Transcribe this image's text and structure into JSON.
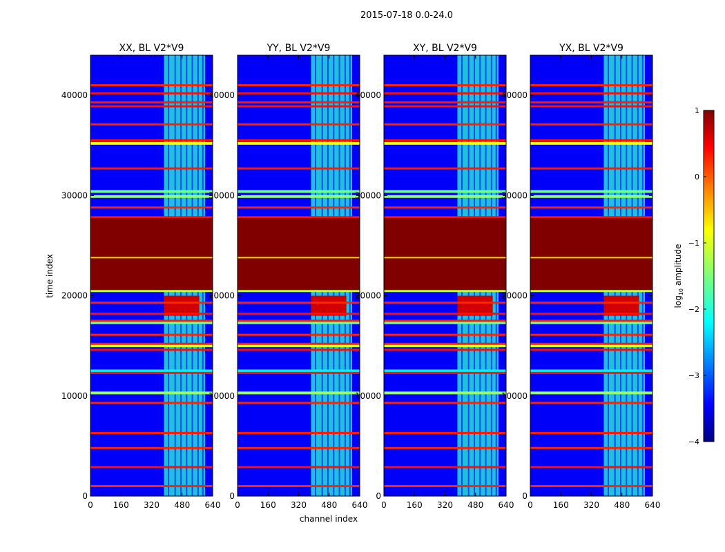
{
  "chart_data": {
    "type": "heatmap",
    "suptitle": "2015-07-18 0.0-24.0",
    "xlabel": "channel index",
    "ylabel": "time index",
    "xlim": [
      0,
      640
    ],
    "ylim": [
      0,
      44000
    ],
    "xticks": [
      0,
      160,
      320,
      480,
      640
    ],
    "yticks": [
      0,
      10000,
      20000,
      30000,
      40000
    ],
    "panels": [
      {
        "title": "XX, BL V2*V9"
      },
      {
        "title": "YY, BL V2*V9"
      },
      {
        "title": "XY, BL V2*V9"
      },
      {
        "title": "YX, BL V2*V9"
      }
    ],
    "colorbar": {
      "label_prefix": "log",
      "label_sub": "10",
      "label_suffix": " amplitude",
      "min": -4,
      "max": 1,
      "ticks": [
        1,
        0,
        -1,
        -2,
        -3,
        -4
      ],
      "tick_labels": [
        "1",
        "0",
        "−1",
        "−2",
        "−3",
        "−4"
      ],
      "colormap": "jet"
    },
    "background_level": -3.4,
    "saturated_rows": {
      "start": 20500,
      "end": 27800,
      "value": 1.0
    },
    "saturated_row_lines": [
      23800
    ],
    "flag_rows": [
      {
        "y": 1000,
        "value": 0.2
      },
      {
        "y": 2900,
        "value": 0.3
      },
      {
        "y": 4800,
        "value": 0.2
      },
      {
        "y": 6300,
        "value": 0.25
      },
      {
        "y": 9300,
        "value": 0.2
      },
      {
        "y": 12300,
        "value": 0.25
      },
      {
        "y": 14600,
        "value": 0.3
      },
      {
        "y": 15200,
        "value": 0.25
      },
      {
        "y": 16100,
        "value": 0.2
      },
      {
        "y": 17500,
        "value": 0.25
      },
      {
        "y": 18200,
        "value": 0.3
      },
      {
        "y": 19300,
        "value": 0.2
      },
      {
        "y": 28800,
        "value": 0.2
      },
      {
        "y": 32700,
        "value": 0.25
      },
      {
        "y": 35500,
        "value": 0.3
      },
      {
        "y": 37100,
        "value": 0.2
      },
      {
        "y": 38900,
        "value": 0.3
      },
      {
        "y": 39300,
        "value": 0.25
      },
      {
        "y": 40200,
        "value": 0.3
      },
      {
        "y": 41000,
        "value": 0.2
      }
    ],
    "bright_rows": [
      {
        "y": 10300,
        "value": -1.4
      },
      {
        "y": 12500,
        "value": -2.2
      },
      {
        "y": 17300,
        "value": -1.6
      },
      {
        "y": 29900,
        "value": -1.4
      },
      {
        "y": 30400,
        "value": -1.6
      },
      {
        "y": 35200,
        "value": -0.9
      },
      {
        "y": 15000,
        "value": -1.1
      }
    ],
    "rfi_band": {
      "start": 385,
      "end": 600,
      "value": -1.9
    },
    "strong_rfi_block": {
      "x_start": 385,
      "x_end": 570,
      "y_start": 18000,
      "y_end": 20000,
      "value": 0.6
    }
  }
}
